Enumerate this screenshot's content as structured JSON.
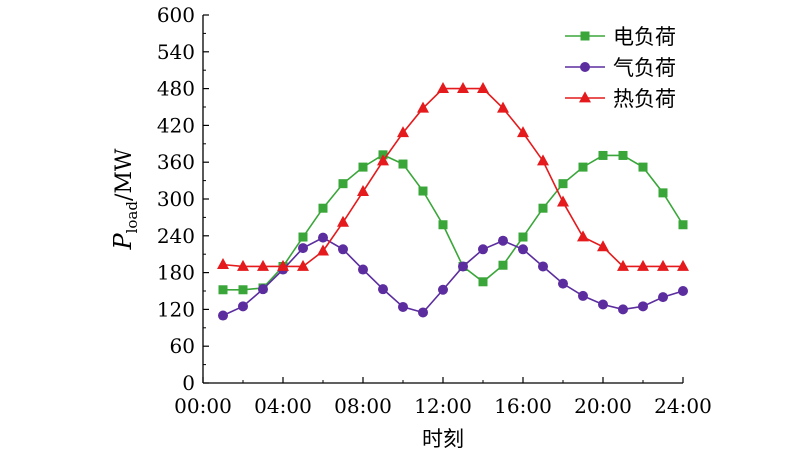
{
  "chart_data": {
    "type": "line",
    "xlabel": "时刻",
    "ylabel": {
      "main": "P",
      "sub": "load",
      "unit": "/MW"
    },
    "xlim": [
      0,
      24
    ],
    "ylim": [
      0,
      600
    ],
    "x_tick_values": [
      0,
      4,
      8,
      12,
      16,
      20,
      24
    ],
    "x_tick_labels": [
      "00:00",
      "04:00",
      "08:00",
      "12:00",
      "16:00",
      "20:00",
      "24:00"
    ],
    "y_tick_values": [
      0,
      60,
      120,
      180,
      240,
      300,
      360,
      420,
      480,
      540,
      600
    ],
    "y_tick_labels": [
      "0",
      "60",
      "120",
      "180",
      "240",
      "300",
      "360",
      "420",
      "480",
      "540",
      "600"
    ],
    "x": [
      1,
      2,
      3,
      4,
      5,
      6,
      7,
      8,
      9,
      10,
      11,
      12,
      13,
      14,
      15,
      16,
      17,
      18,
      19,
      20,
      21,
      22,
      23,
      24
    ],
    "grid": false,
    "legend_position": "top-right",
    "series": [
      {
        "name": "电负荷",
        "color": "#3aa63a",
        "marker": "square",
        "values": [
          152,
          152,
          155,
          190,
          238,
          285,
          325,
          352,
          372,
          357,
          313,
          258,
          190,
          165,
          192,
          238,
          285,
          325,
          352,
          371,
          371,
          352,
          310,
          258
        ]
      },
      {
        "name": "气负荷",
        "color": "#5b2d9e",
        "marker": "circle",
        "values": [
          110,
          125,
          153,
          185,
          220,
          237,
          218,
          185,
          153,
          124,
          115,
          152,
          190,
          218,
          232,
          218,
          190,
          162,
          142,
          128,
          120,
          125,
          140,
          150
        ]
      },
      {
        "name": "热负荷",
        "color": "#e41a1c",
        "marker": "triangle",
        "values": [
          193,
          190,
          190,
          190,
          190,
          215,
          262,
          312,
          362,
          408,
          448,
          480,
          480,
          480,
          448,
          408,
          362,
          295,
          238,
          222,
          190,
          190,
          190,
          190
        ]
      }
    ]
  }
}
